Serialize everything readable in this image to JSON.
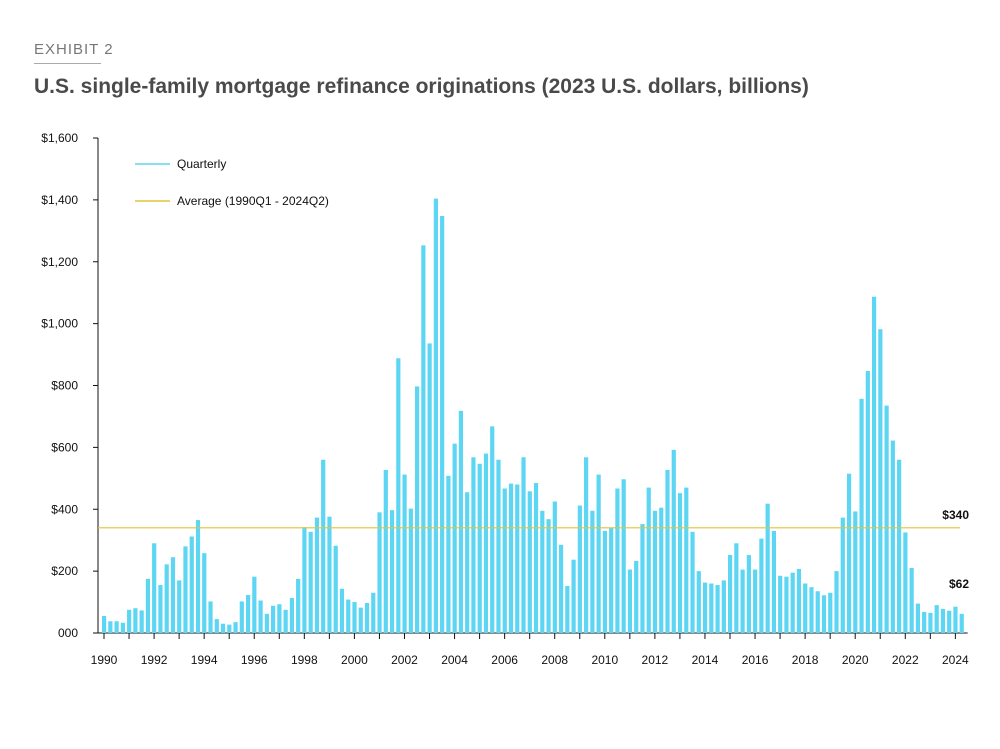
{
  "header": {
    "exhibit": "EXHIBIT 2",
    "title": "U.S. single-family mortgage refinance originations (2023 U.S. dollars, billions)"
  },
  "chart_data": {
    "type": "bar",
    "title": "U.S. single-family mortgage refinance originations (2023 U.S. dollars, billions)",
    "xlabel": "",
    "ylabel": "",
    "ylim": [
      0,
      1600
    ],
    "y_ticks": [
      0,
      200,
      400,
      600,
      800,
      1000,
      1200,
      1400,
      1600
    ],
    "y_tick_labels": [
      "000",
      "$200",
      "$400",
      "$600",
      "$800",
      "$1,000",
      "$1,200",
      "$1,400",
      "$1,600"
    ],
    "x_tick_labels": [
      "1990",
      "1992",
      "1994",
      "1996",
      "1998",
      "2000",
      "2002",
      "2004",
      "2006",
      "2008",
      "2010",
      "2012",
      "2014",
      "2016",
      "2018",
      "2020",
      "2022",
      "2024"
    ],
    "start": "1990Q1",
    "end": "2024Q2",
    "frequency": "quarterly",
    "grid": false,
    "legend_placement": "top-left",
    "colors": {
      "quarterly": "#5dd6f4",
      "average": "#e3c43a"
    },
    "series": [
      {
        "name": "Quarterly",
        "values": [
          55,
          38,
          38,
          33,
          75,
          80,
          73,
          175,
          290,
          155,
          222,
          245,
          170,
          280,
          312,
          365,
          258,
          102,
          45,
          30,
          27,
          35,
          102,
          123,
          182,
          105,
          62,
          88,
          93,
          75,
          113,
          175,
          342,
          327,
          373,
          560,
          376,
          282,
          143,
          108,
          100,
          82,
          97,
          130,
          390,
          527,
          397,
          888,
          512,
          402,
          797,
          1253,
          936,
          1404,
          1348,
          508,
          612,
          718,
          455,
          568,
          547,
          580,
          668,
          560,
          467,
          483,
          480,
          568,
          458,
          485,
          395,
          368,
          425,
          285,
          152,
          237,
          412,
          568,
          395,
          512,
          330,
          340,
          467,
          497,
          205,
          233,
          352,
          470,
          395,
          405,
          527,
          592,
          452,
          470,
          327,
          200,
          163,
          160,
          155,
          170,
          252,
          290,
          205,
          252,
          205,
          305,
          418,
          330,
          185,
          182,
          195,
          207,
          160,
          148,
          135,
          122,
          130,
          200,
          373,
          515,
          393,
          757,
          847,
          1087,
          982,
          735,
          622,
          560,
          325,
          210,
          95,
          68,
          65,
          90,
          78,
          72,
          85,
          62
        ]
      },
      {
        "name": "Average (1990Q1 - 2024Q2)",
        "value": 340
      }
    ],
    "annotations": [
      {
        "text": "$340",
        "value": 340
      },
      {
        "text": "$62",
        "value": 62
      }
    ]
  }
}
